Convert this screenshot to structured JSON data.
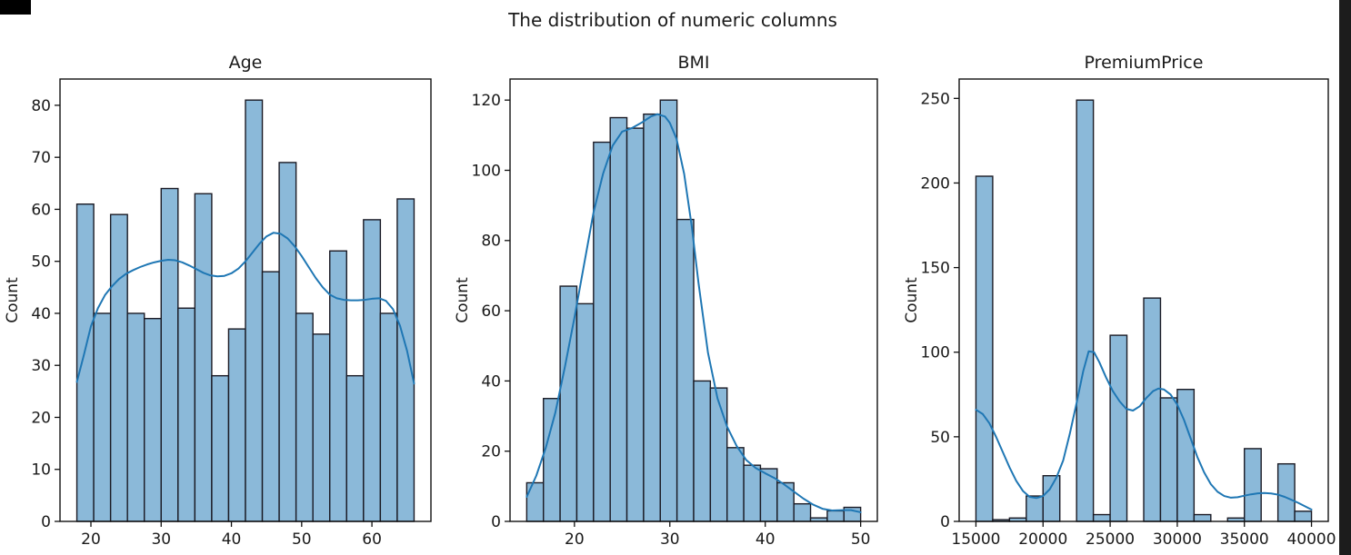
{
  "figure": {
    "suptitle": "The distribution of numeric columns",
    "background": "#ffffff",
    "bar_fill": "#8bb9d9",
    "bar_edge": "#1a1a24",
    "kde_color": "#1f77b4",
    "spine_color": "#111111",
    "text_color": "#1a1a1a",
    "decor_black": "#000000"
  },
  "chart_data": [
    {
      "type": "histogram+kde",
      "title": "Age",
      "ylabel": "Count",
      "xlabel": "",
      "bin_start": 18,
      "bin_width": 2.4,
      "counts": [
        61,
        40,
        59,
        40,
        39,
        64,
        41,
        63,
        28,
        37,
        81,
        48,
        69,
        40,
        36,
        52,
        28,
        58,
        40,
        62
      ],
      "xticks": [
        20,
        30,
        40,
        50,
        60
      ],
      "yticks": [
        0,
        10,
        20,
        30,
        40,
        50,
        60,
        70,
        80
      ],
      "xlim": [
        15.6,
        68.4
      ],
      "ylim": [
        0,
        85.05
      ],
      "kde": [
        [
          18,
          26.8
        ],
        [
          19,
          32
        ],
        [
          20,
          37.5
        ],
        [
          21,
          41
        ],
        [
          22,
          43.5
        ],
        [
          23,
          45.2
        ],
        [
          24,
          46.6
        ],
        [
          25,
          47.6
        ],
        [
          26,
          48.3
        ],
        [
          27,
          48.9
        ],
        [
          28,
          49.4
        ],
        [
          29,
          49.8
        ],
        [
          30,
          50.1
        ],
        [
          31,
          50.3
        ],
        [
          32,
          50.2
        ],
        [
          33,
          49.8
        ],
        [
          34,
          49.2
        ],
        [
          35,
          48.5
        ],
        [
          36,
          47.8
        ],
        [
          37,
          47.3
        ],
        [
          38,
          47.1
        ],
        [
          39,
          47.2
        ],
        [
          40,
          47.7
        ],
        [
          41,
          48.6
        ],
        [
          42,
          50
        ],
        [
          43,
          51.7
        ],
        [
          44,
          53.4
        ],
        [
          45,
          54.8
        ],
        [
          46,
          55.5
        ],
        [
          47,
          55.3
        ],
        [
          48,
          54.4
        ],
        [
          49,
          52.9
        ],
        [
          50,
          51
        ],
        [
          51,
          48.9
        ],
        [
          52,
          46.8
        ],
        [
          53,
          45
        ],
        [
          54,
          43.6
        ],
        [
          55,
          42.9
        ],
        [
          56,
          42.6
        ],
        [
          57,
          42.5
        ],
        [
          58,
          42.5
        ],
        [
          59,
          42.6
        ],
        [
          60,
          42.8
        ],
        [
          61,
          42.9
        ],
        [
          62,
          42.4
        ],
        [
          63,
          40.8
        ],
        [
          64,
          37.6
        ],
        [
          65,
          32.8
        ],
        [
          66,
          26.5
        ]
      ]
    },
    {
      "type": "histogram+kde",
      "title": "BMI",
      "ylabel": "Count",
      "xlabel": "",
      "bin_start": 15,
      "bin_width": 1.75,
      "counts": [
        11,
        35,
        67,
        62,
        108,
        115,
        112,
        116,
        120,
        86,
        40,
        38,
        21,
        16,
        15,
        11,
        5,
        1,
        3,
        4
      ],
      "xticks": [
        20,
        30,
        40,
        50
      ],
      "yticks": [
        0,
        20,
        40,
        60,
        80,
        100,
        120
      ],
      "xlim": [
        13.25,
        51.75
      ],
      "ylim": [
        0,
        126
      ],
      "kde": [
        [
          15,
          7
        ],
        [
          16,
          13
        ],
        [
          17,
          21
        ],
        [
          18,
          31
        ],
        [
          19,
          44
        ],
        [
          20,
          58
        ],
        [
          21,
          73
        ],
        [
          22,
          88
        ],
        [
          23,
          99
        ],
        [
          24,
          107
        ],
        [
          25,
          111
        ],
        [
          26,
          112
        ],
        [
          27,
          113.5
        ],
        [
          28,
          115.3
        ],
        [
          28.7,
          116
        ],
        [
          29.5,
          115.3
        ],
        [
          30,
          113.5
        ],
        [
          30.7,
          109
        ],
        [
          31.5,
          99
        ],
        [
          32.3,
          84
        ],
        [
          33,
          68
        ],
        [
          34,
          48
        ],
        [
          35,
          35
        ],
        [
          36,
          27
        ],
        [
          37,
          21.5
        ],
        [
          38,
          17.5
        ],
        [
          39,
          15.2
        ],
        [
          40,
          13.7
        ],
        [
          41,
          12.3
        ],
        [
          42,
          10.5
        ],
        [
          43,
          8.5
        ],
        [
          44,
          6.5
        ],
        [
          45,
          4.8
        ],
        [
          46,
          3.6
        ],
        [
          47,
          3.1
        ],
        [
          48,
          3.2
        ],
        [
          49,
          3.2
        ],
        [
          50,
          2.6
        ]
      ]
    },
    {
      "type": "histogram+kde",
      "title": "PremiumPrice",
      "ylabel": "Count",
      "xlabel": "",
      "bin_start": 15000,
      "bin_width": 1250,
      "counts": [
        204,
        1,
        2,
        15,
        27,
        0,
        249,
        4,
        110,
        0,
        132,
        73,
        78,
        4,
        0,
        2,
        43,
        0,
        34,
        6
      ],
      "xticks": [
        15000,
        20000,
        25000,
        30000,
        35000,
        40000
      ],
      "yticks": [
        0,
        50,
        100,
        150,
        200,
        250
      ],
      "xlim": [
        13750,
        41250
      ],
      "ylim": [
        0,
        261.45
      ],
      "kde": [
        [
          15000,
          66
        ],
        [
          15500,
          63.5
        ],
        [
          16000,
          58
        ],
        [
          16500,
          50
        ],
        [
          17000,
          41
        ],
        [
          17500,
          32
        ],
        [
          18000,
          24
        ],
        [
          18500,
          18
        ],
        [
          19000,
          14.5
        ],
        [
          19500,
          13.8
        ],
        [
          20000,
          15
        ],
        [
          20500,
          19
        ],
        [
          21000,
          26
        ],
        [
          21500,
          36
        ],
        [
          22000,
          52
        ],
        [
          22500,
          70
        ],
        [
          23000,
          89
        ],
        [
          23400,
          100.5
        ],
        [
          23800,
          100
        ],
        [
          24200,
          94
        ],
        [
          24700,
          85
        ],
        [
          25200,
          77
        ],
        [
          25700,
          71
        ],
        [
          26200,
          66.5
        ],
        [
          26700,
          65.5
        ],
        [
          27200,
          68
        ],
        [
          27700,
          73
        ],
        [
          28200,
          77
        ],
        [
          28600,
          78.5
        ],
        [
          29000,
          78
        ],
        [
          29500,
          75
        ],
        [
          30000,
          69
        ],
        [
          30500,
          60
        ],
        [
          31000,
          49
        ],
        [
          31500,
          38
        ],
        [
          32000,
          29
        ],
        [
          32500,
          22
        ],
        [
          33000,
          17.5
        ],
        [
          33500,
          15
        ],
        [
          34000,
          14
        ],
        [
          34500,
          14.3
        ],
        [
          35000,
          15.2
        ],
        [
          35500,
          16
        ],
        [
          36000,
          16.6
        ],
        [
          36500,
          16.8
        ],
        [
          37000,
          16.5
        ],
        [
          37500,
          15.8
        ],
        [
          38000,
          14.5
        ],
        [
          38500,
          12.8
        ],
        [
          39000,
          11
        ],
        [
          39500,
          9
        ],
        [
          40000,
          7
        ]
      ]
    }
  ]
}
